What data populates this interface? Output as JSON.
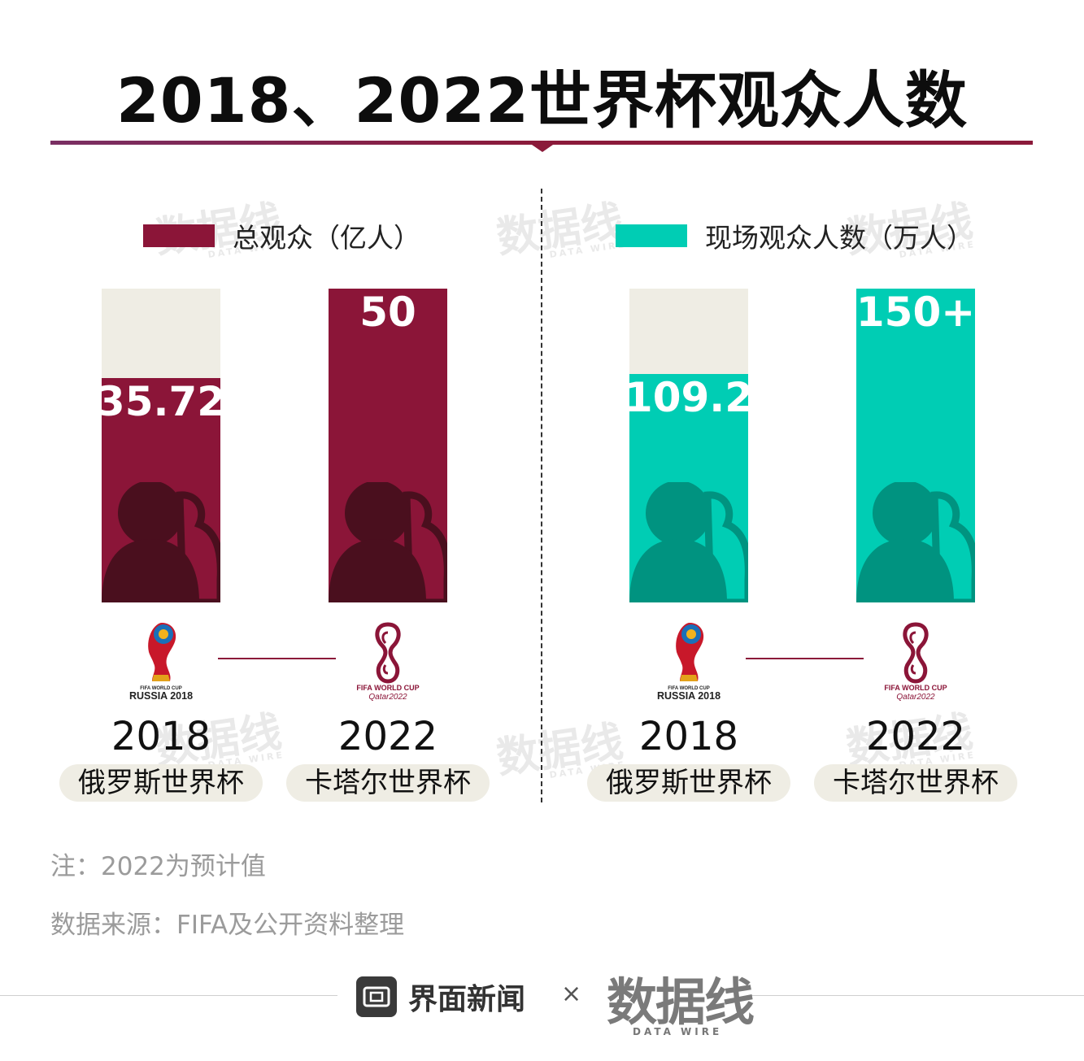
{
  "title": "2018、2022世界杯观众人数",
  "colors": {
    "total_viewers": "#8b1538",
    "total_viewers_dark": "#4a0f1e",
    "attendance": "#00cdb4",
    "attendance_dark": "#009380",
    "bar_background": "#efede4",
    "accent": "#8b1a3a"
  },
  "panels": [
    {
      "legend": "总观众（亿人）",
      "color_key": "total_viewers",
      "bars": [
        {
          "value": 35.72,
          "label": "35.72",
          "year": "2018",
          "tournament": "俄罗斯世界杯",
          "logo": "russia-2018-logo"
        },
        {
          "value": 50,
          "label": "50",
          "year": "2022",
          "tournament": "卡塔尔世界杯",
          "logo": "qatar-2022-logo"
        }
      ]
    },
    {
      "legend": "现场观众人数（万人）",
      "color_key": "attendance",
      "bars": [
        {
          "value": 109.2,
          "label": "109.2",
          "year": "2018",
          "tournament": "俄罗斯世界杯",
          "logo": "russia-2018-logo"
        },
        {
          "value": 150,
          "label": "150+",
          "year": "2022",
          "tournament": "卡塔尔世界杯",
          "logo": "qatar-2022-logo"
        }
      ]
    }
  ],
  "chart_data": [
    {
      "type": "bar",
      "title": "",
      "categories": [
        "2018 俄罗斯世界杯",
        "2022 卡塔尔世界杯"
      ],
      "series": [
        {
          "name": "总观众（亿人）",
          "values": [
            35.72,
            50
          ]
        }
      ],
      "value_labels": [
        "35.72",
        "50"
      ],
      "ylim": [
        0,
        50
      ]
    },
    {
      "type": "bar",
      "title": "",
      "categories": [
        "2018 俄罗斯世界杯",
        "2022 卡塔尔世界杯"
      ],
      "series": [
        {
          "name": "现场观众人数（万人）",
          "values": [
            109.2,
            150
          ]
        }
      ],
      "value_labels": [
        "109.2",
        "150+"
      ],
      "ylim": [
        0,
        150
      ]
    }
  ],
  "logos": {
    "russia_line1": "FIFA WORLD CUP",
    "russia_line2": "RUSSIA 2018",
    "qatar_line1": "FIFA WORLD CUP",
    "qatar_line2": "Qatar2022"
  },
  "notes": {
    "note": "注：2022为预计值",
    "source": "数据来源：FIFA及公开资料整理"
  },
  "footer": {
    "brand": "界面新闻",
    "times": "×",
    "partner": "数据线",
    "partner_sub": "DATA WIRE"
  },
  "watermark": {
    "text": "数据线",
    "sub": "DATA WIRE"
  }
}
